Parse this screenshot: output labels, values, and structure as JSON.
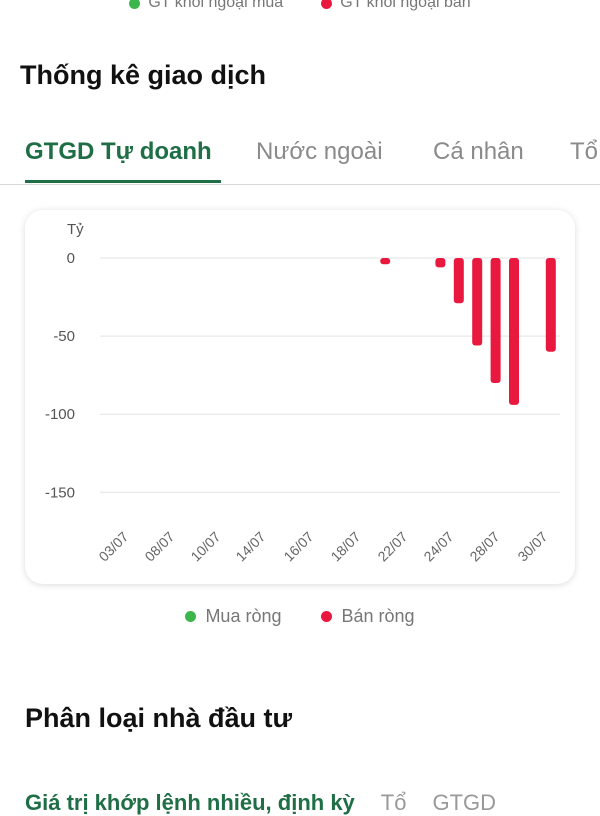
{
  "top_legend": {
    "buy": {
      "label": "GT khối ngoại mua",
      "color": "#3cb54a"
    },
    "sell": {
      "label": "GT khối ngoại bán",
      "color": "#e8183e"
    }
  },
  "section_title": "Thống kê giao dịch",
  "tabs": [
    {
      "label": "GTGD Tự doanh",
      "active": true
    },
    {
      "label": "Nước ngoài",
      "active": false
    },
    {
      "label": "Cá nhân",
      "active": false
    },
    {
      "label": "Tổ",
      "active": false
    }
  ],
  "chart_data": {
    "type": "bar",
    "unit_label": "Tỷ",
    "ylim": [
      -160,
      0
    ],
    "yticks": [
      0,
      -50,
      -100,
      -150
    ],
    "xticks": [
      "03/07",
      "08/07",
      "10/07",
      "14/07",
      "16/07",
      "18/07",
      "22/07",
      "24/07",
      "28/07",
      "30/07"
    ],
    "grid": true,
    "series": [
      {
        "name": "Bán ròng",
        "color": "#e8183e",
        "values": [
          0,
          0,
          0,
          0,
          0,
          0,
          0,
          0,
          0,
          0,
          0,
          0,
          0,
          0,
          0,
          -4,
          0,
          0,
          -6,
          -29,
          -56,
          -80,
          -94,
          0,
          -60
        ]
      }
    ],
    "legend": [
      {
        "label": "Mua ròng",
        "color": "#3cb54a"
      },
      {
        "label": "Bán ròng",
        "color": "#e8183e"
      }
    ]
  },
  "section_title_2": "Phân loại nhà đầu tư",
  "sub_tabs": {
    "active": "Giá trị khớp lệnh nhiều, định kỳ",
    "others": [
      "Tổ",
      "GTGD"
    ]
  }
}
